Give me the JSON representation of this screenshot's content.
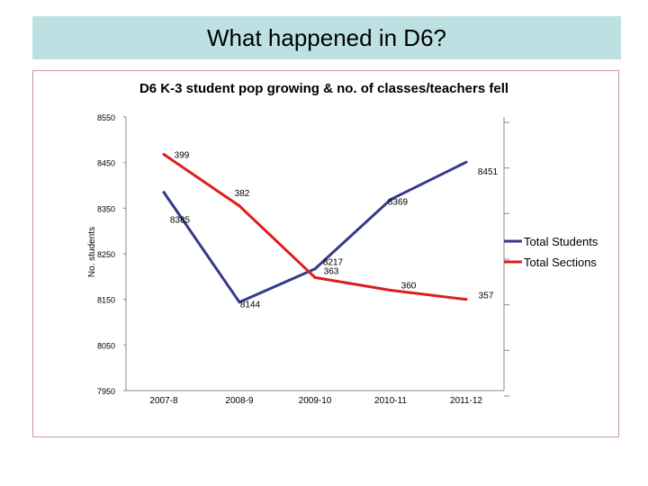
{
  "slide": {
    "title": "What happened in D6?"
  },
  "chart_data": {
    "type": "line",
    "title": "D6 K-3 student pop growing & no. of classes/teachers fell",
    "ylabel": "No. students",
    "categories": [
      "2007-8",
      "2008-9",
      "2009-10",
      "2010-11",
      "2011-12"
    ],
    "ylim": [
      7950,
      8550
    ],
    "yticks": [
      "8550",
      "8450",
      "8350",
      "8250",
      "8150",
      "8050",
      "7950"
    ],
    "legend_position": "right",
    "series": [
      {
        "name": "Total Students",
        "color": "#333a8a",
        "values": [
          8385,
          8144,
          8217,
          8369,
          8451
        ],
        "labels": [
          "8385",
          "8144",
          "8217",
          "8369",
          "8451"
        ]
      },
      {
        "name": "Total Sections",
        "color": "#dd1d1d",
        "values": [
          8468,
          8355,
          8198,
          8170,
          8150
        ],
        "labels": [
          "399",
          "382",
          "363",
          "360",
          "357"
        ]
      }
    ]
  }
}
